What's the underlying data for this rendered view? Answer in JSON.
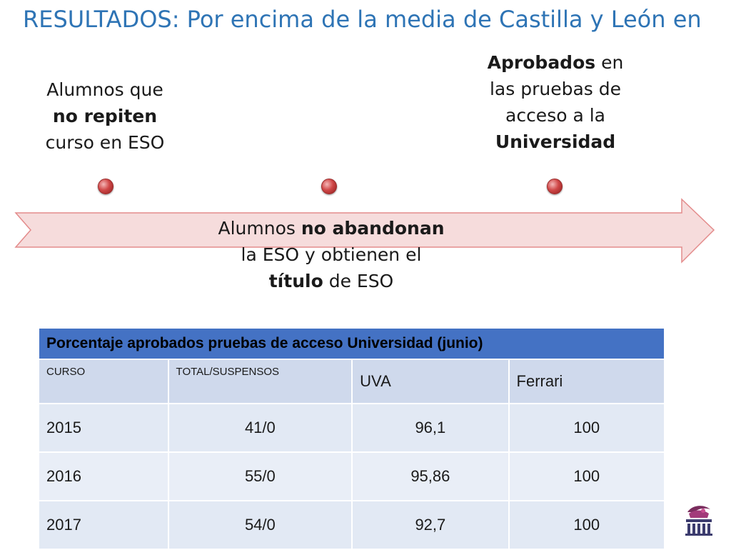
{
  "title": "RESULTADOS: Por encima de la media de  Castilla y León en",
  "labels": {
    "left": {
      "pre": "Alumnos que",
      "bold": "no repiten",
      "post": "curso en ESO"
    },
    "right": {
      "bold1": "Aprobados",
      "t1": " en",
      "t2": "las pruebas de",
      "t3": "acceso a la",
      "bold2": "Universidad"
    },
    "middle": {
      "t1": "Alumnos ",
      "bold1": "no abandonan",
      "t2": "la ESO y obtienen el",
      "bold2": "título",
      "t3": " de ESO"
    }
  },
  "table": {
    "title": "Porcentaje aprobados pruebas de acceso Universidad (junio)",
    "columns": [
      "CURSO",
      "TOTAL/SUSPENSOS",
      "UVA",
      "Ferrari"
    ],
    "rows": [
      [
        "2015",
        "41/0",
        "96,1",
        "100"
      ],
      [
        "2016",
        "55/0",
        "95,86",
        "100"
      ],
      [
        "2017",
        "54/0",
        "92,7",
        "100"
      ]
    ]
  },
  "colors": {
    "title": "#2e74b5",
    "arrow_fill": "#f6dcdc",
    "arrow_stroke": "#e38b8b",
    "table_header": "#4472c4",
    "table_subheader": "#cfd9ec",
    "table_row": "#e9eef7"
  }
}
